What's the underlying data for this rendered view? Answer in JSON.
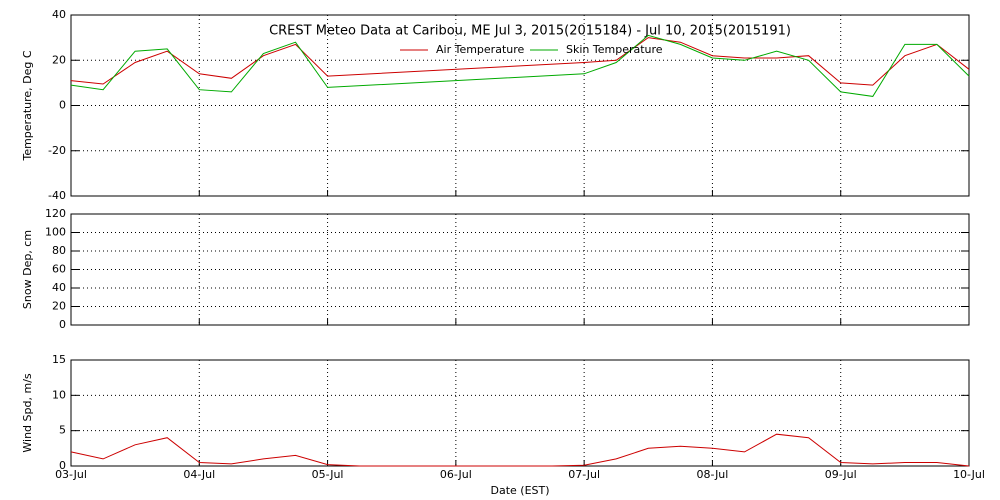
{
  "chart_data": [
    {
      "type": "line",
      "title": "CREST Meteo Data at Caribou, ME   Jul  3, 2015(2015184) - Jul 10, 2015(2015191)",
      "ylabel": "Temperature, Deg C",
      "x": [
        0,
        0.25,
        0.5,
        0.75,
        1,
        1.25,
        1.5,
        1.75,
        2,
        4,
        4.25,
        4.5,
        4.75,
        5,
        5.25,
        5.5,
        5.75,
        6,
        6.25,
        6.5,
        6.75,
        7
      ],
      "xlim": [
        0,
        7
      ],
      "xticks": [
        0,
        1,
        2,
        3,
        4,
        5,
        6,
        7
      ],
      "ylim": [
        -40,
        40
      ],
      "yticks": [
        -40,
        -20,
        0,
        20,
        40
      ],
      "grid": true,
      "series": [
        {
          "name": "Air Temperature",
          "color": "#cc0000",
          "values": [
            11,
            9.5,
            19,
            24,
            14,
            12,
            22,
            27,
            13,
            19,
            20,
            30,
            28,
            22,
            21,
            21,
            22,
            10,
            9,
            22,
            27,
            16
          ]
        },
        {
          "name": "Skin Temperature",
          "color": "#00aa00",
          "values": [
            9,
            7,
            24,
            25,
            7,
            6,
            23,
            28,
            8,
            14,
            19,
            31,
            27,
            21,
            20,
            24,
            20,
            6,
            4,
            27,
            27,
            13
          ]
        }
      ]
    },
    {
      "type": "line",
      "ylabel": "Snow Dep, cm",
      "xlim": [
        0,
        7
      ],
      "xticks": [
        0,
        1,
        2,
        3,
        4,
        5,
        6,
        7
      ],
      "ylim": [
        0,
        120
      ],
      "yticks": [
        0,
        20,
        40,
        60,
        80,
        100,
        120
      ],
      "grid": true
    },
    {
      "type": "line",
      "ylabel": "Wind Spd, m/s",
      "xlabel": "Date (EST)",
      "x": [
        0,
        0.25,
        0.5,
        0.75,
        1,
        1.25,
        1.5,
        1.75,
        2,
        2.25,
        2.5,
        2.75,
        3,
        3.25,
        3.5,
        3.75,
        4,
        4.25,
        4.5,
        4.75,
        5,
        5.25,
        5.5,
        5.75,
        6,
        6.25,
        6.5,
        6.75,
        7
      ],
      "xlim": [
        0,
        7
      ],
      "xticks": [
        {
          "value": 0,
          "label": "03-Jul"
        },
        {
          "value": 1,
          "label": "04-Jul"
        },
        {
          "value": 2,
          "label": "05-Jul"
        },
        {
          "value": 3,
          "label": "06-Jul"
        },
        {
          "value": 4,
          "label": "07-Jul"
        },
        {
          "value": 5,
          "label": "08-Jul"
        },
        {
          "value": 6,
          "label": "09-Jul"
        },
        {
          "value": 7,
          "label": "10-Jul"
        }
      ],
      "ylim": [
        0,
        15
      ],
      "yticks": [
        0,
        5,
        10,
        15
      ],
      "grid": true,
      "series": [
        {
          "name": "Wind Speed",
          "color": "#cc0000",
          "values": [
            2,
            1,
            3,
            4,
            0.5,
            0.3,
            1,
            1.5,
            0.2,
            0,
            0,
            0,
            0,
            0,
            0,
            0,
            0.1,
            1,
            2.5,
            2.8,
            2.5,
            2,
            4.5,
            4,
            0.5,
            0.3,
            0.5,
            0.5,
            0
          ]
        }
      ]
    }
  ]
}
